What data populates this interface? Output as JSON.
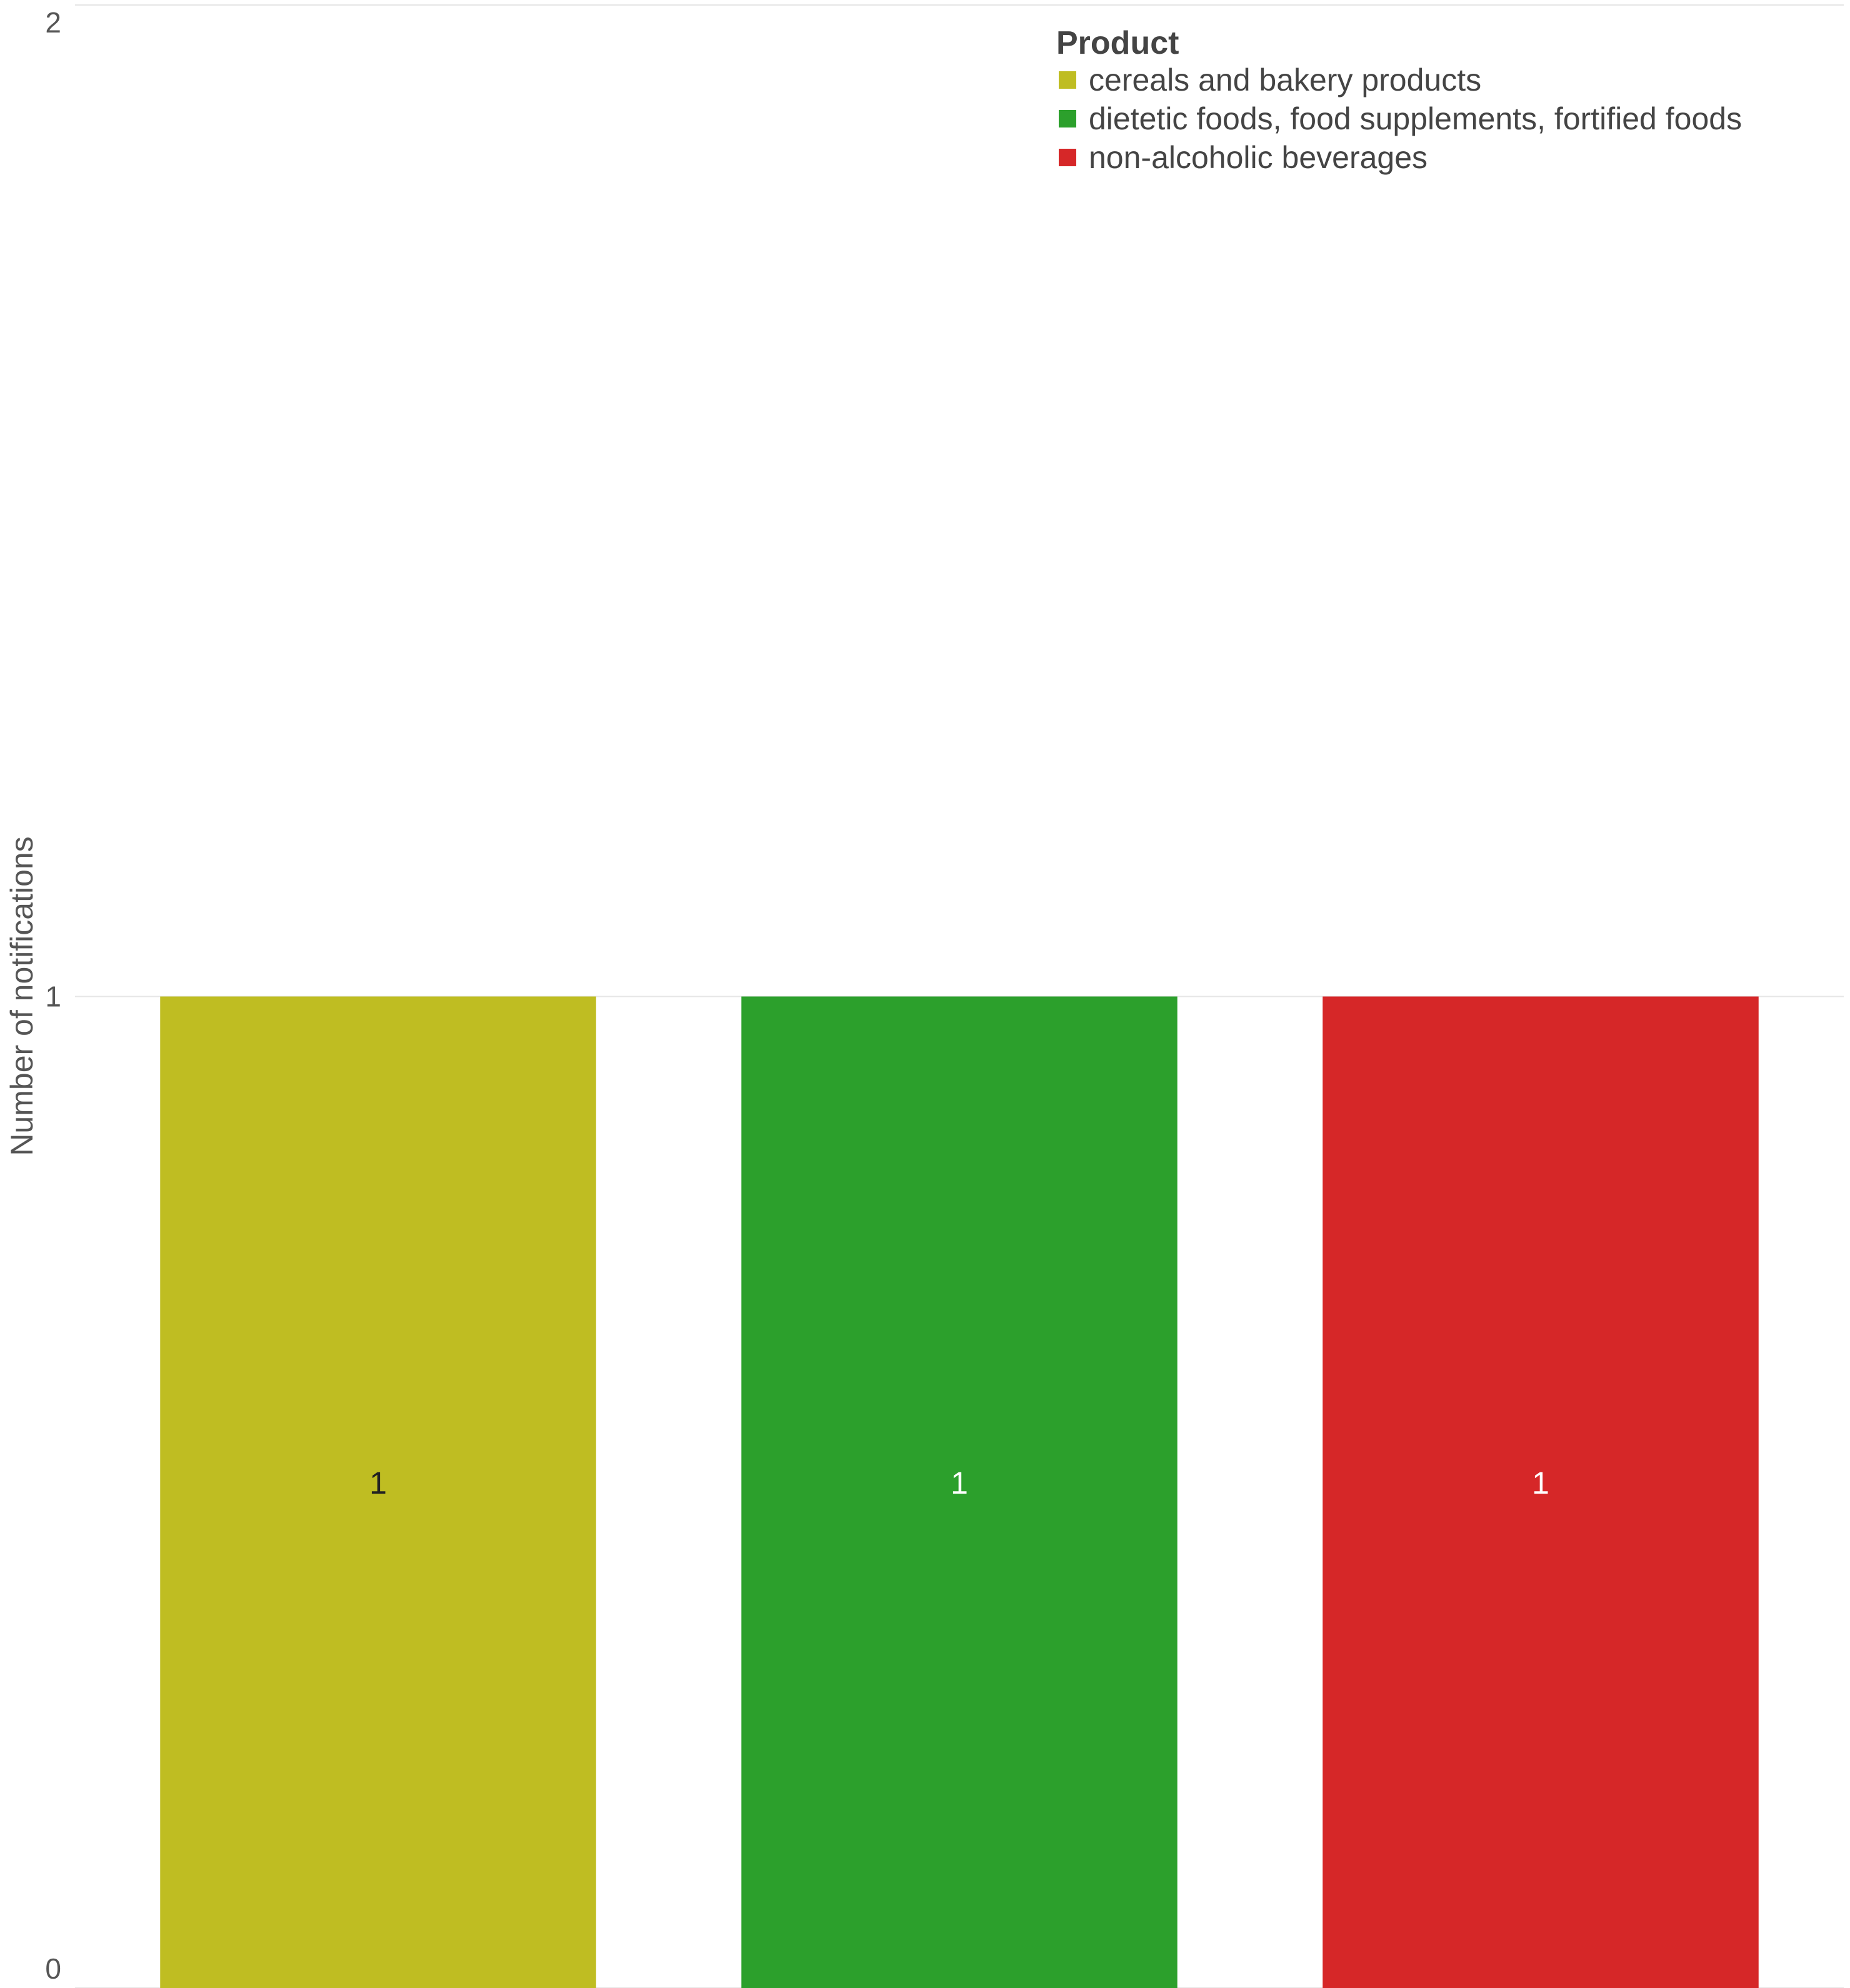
{
  "chart_data": {
    "type": "bar",
    "categories": [
      "cereals and bakery products",
      "dietetic foods, food supplements, fortified foods",
      "non-alcoholic beverages"
    ],
    "values": [
      1,
      1,
      1
    ],
    "data_labels": [
      "1",
      "1",
      "1"
    ],
    "colors": [
      "#bfbd22",
      "#2ca02c",
      "#d62728"
    ],
    "data_label_colors": [
      "#222222",
      "#ffffff",
      "#ffffff"
    ],
    "ylabel": "Number of notifications",
    "ylim": [
      0,
      2
    ],
    "yticks": [
      {
        "value": 0,
        "label": "0"
      },
      {
        "value": 1,
        "label": "1"
      },
      {
        "value": 2,
        "label": "2"
      }
    ],
    "grid": true,
    "legend": {
      "title": "Product",
      "placement": "top-right",
      "entries": [
        "cereals and bakery products",
        "dietetic foods, food supplements, fortified foods",
        "non-alcoholic beverages"
      ]
    }
  }
}
